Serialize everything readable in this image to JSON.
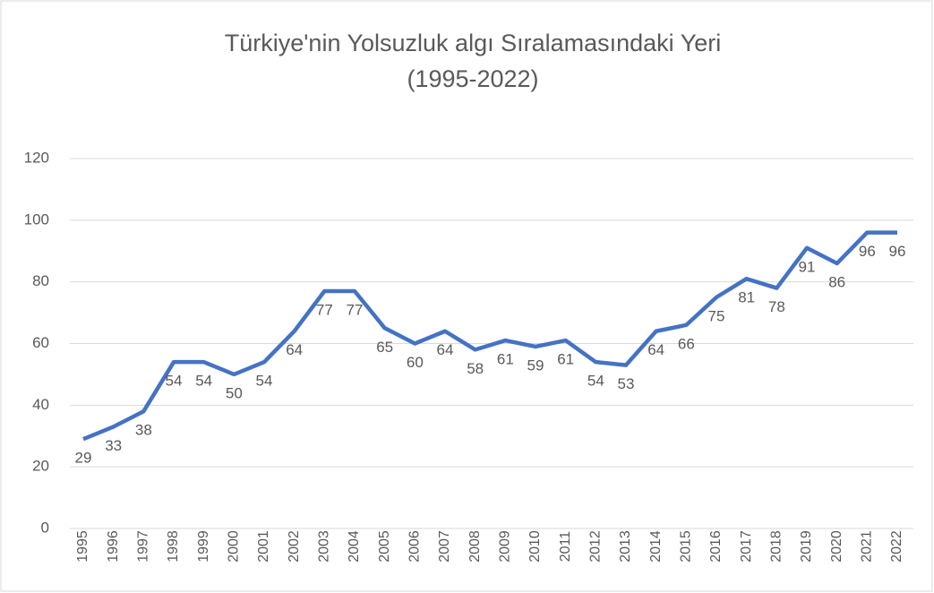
{
  "chart_data": {
    "type": "line",
    "title": "Türkiye'nin Yolsuzluk algı Sıralamasındaki Yeri",
    "subtitle": "(1995-2022)",
    "categories": [
      "1995",
      "1996",
      "1997",
      "1998",
      "1999",
      "2000",
      "2001",
      "2002",
      "2003",
      "2004",
      "2005",
      "2006",
      "2007",
      "2008",
      "2009",
      "2010",
      "2011",
      "2012",
      "2013",
      "2014",
      "2015",
      "2016",
      "2017",
      "2018",
      "2019",
      "2020",
      "2021",
      "2022"
    ],
    "values": [
      29,
      33,
      38,
      54,
      54,
      50,
      54,
      64,
      77,
      77,
      65,
      60,
      64,
      58,
      61,
      59,
      61,
      54,
      53,
      64,
      66,
      75,
      81,
      78,
      91,
      86,
      96,
      96
    ],
    "color": "#4472c4",
    "ylim": [
      0,
      120
    ],
    "yticks": [
      0,
      20,
      40,
      60,
      80,
      100,
      120
    ],
    "grid": true
  }
}
